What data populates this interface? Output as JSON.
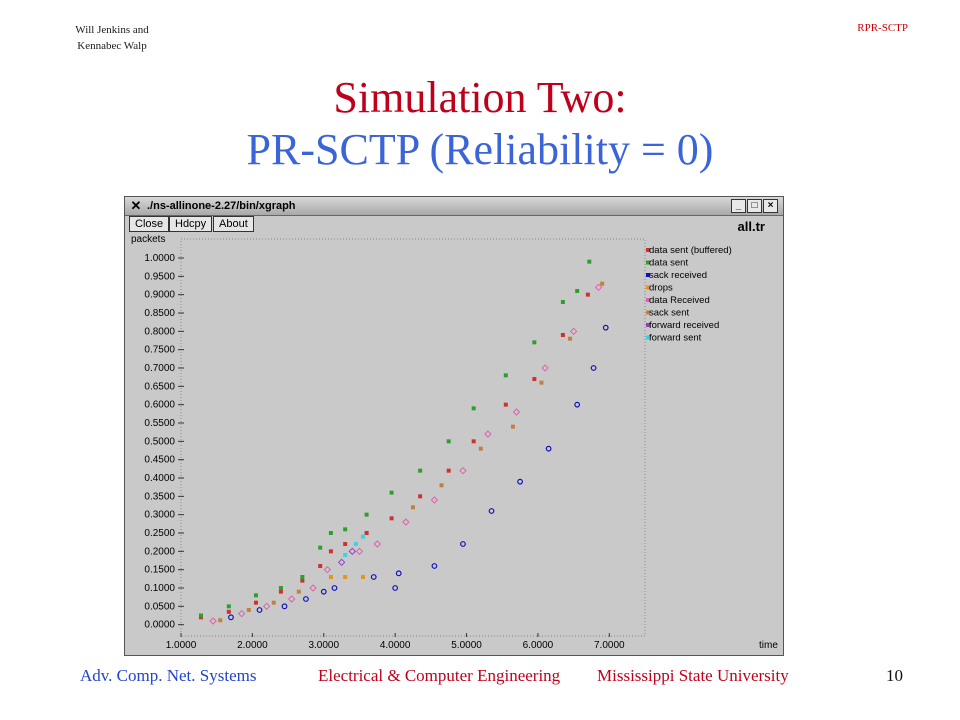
{
  "slide": {
    "authors_line1": "Will Jenkins and",
    "authors_line2": "Kennabec Walp",
    "topic": "RPR-SCTP",
    "title_line1": "Simulation Two:",
    "title_line2": "PR-SCTP (Reliability = 0)",
    "footer_course": "Adv. Comp. Net. Systems",
    "footer_dept": "Electrical & Computer Engineering",
    "footer_univ": "Mississippi State University",
    "page_number": "10"
  },
  "window": {
    "title": "./ns-allinone-2.27/bin/xgraph",
    "buttons": [
      "Close",
      "Hdcpy",
      "About"
    ],
    "controls": [
      "_",
      "□",
      "×"
    ]
  },
  "chart_data": {
    "type": "scatter",
    "title": "all.tr",
    "ylabel": "packets",
    "xlabel": "time",
    "xlim": [
      1.0,
      7.5
    ],
    "ylim": [
      -0.02,
      1.03
    ],
    "x_ticks": [
      "1.0000",
      "2.0000",
      "3.0000",
      "4.0000",
      "5.0000",
      "6.0000",
      "7.0000"
    ],
    "y_ticks": [
      "0.0000",
      "0.0500",
      "0.1000",
      "0.1500",
      "0.2000",
      "0.2500",
      "0.3000",
      "0.3500",
      "0.4000",
      "0.4500",
      "0.5000",
      "0.5500",
      "0.6000",
      "0.6500",
      "0.7000",
      "0.7500",
      "0.8000",
      "0.8500",
      "0.9000",
      "0.9500",
      "1.0000"
    ],
    "legend_position": "right",
    "series": [
      {
        "name": "data sent (buffered)",
        "color": "#d03030",
        "points": [
          [
            1.28,
            0.02
          ],
          [
            1.67,
            0.035
          ],
          [
            2.05,
            0.06
          ],
          [
            2.4,
            0.09
          ],
          [
            2.7,
            0.12
          ],
          [
            2.95,
            0.16
          ],
          [
            3.1,
            0.2
          ],
          [
            3.3,
            0.22
          ],
          [
            3.6,
            0.25
          ],
          [
            3.95,
            0.29
          ],
          [
            4.35,
            0.35
          ],
          [
            4.75,
            0.42
          ],
          [
            5.1,
            0.5
          ],
          [
            5.55,
            0.6
          ],
          [
            5.95,
            0.67
          ],
          [
            6.35,
            0.79
          ],
          [
            6.7,
            0.9
          ]
        ]
      },
      {
        "name": "data sent",
        "color": "#2ca02c",
        "points": [
          [
            1.28,
            0.025
          ],
          [
            1.67,
            0.05
          ],
          [
            2.05,
            0.08
          ],
          [
            2.4,
            0.1
          ],
          [
            2.7,
            0.13
          ],
          [
            2.95,
            0.21
          ],
          [
            3.1,
            0.25
          ],
          [
            3.3,
            0.26
          ],
          [
            3.6,
            0.3
          ],
          [
            3.95,
            0.36
          ],
          [
            4.35,
            0.42
          ],
          [
            4.75,
            0.5
          ],
          [
            5.1,
            0.59
          ],
          [
            5.55,
            0.68
          ],
          [
            5.95,
            0.77
          ],
          [
            6.35,
            0.88
          ],
          [
            6.55,
            0.91
          ],
          [
            6.72,
            0.99
          ]
        ]
      },
      {
        "name": "sack received",
        "color": "#1010c0",
        "points": [
          [
            1.7,
            0.02
          ],
          [
            2.1,
            0.04
          ],
          [
            2.45,
            0.05
          ],
          [
            2.75,
            0.07
          ],
          [
            3.0,
            0.09
          ],
          [
            3.15,
            0.1
          ],
          [
            3.7,
            0.13
          ],
          [
            4.0,
            0.1
          ],
          [
            4.05,
            0.14
          ],
          [
            4.55,
            0.16
          ],
          [
            4.95,
            0.22
          ],
          [
            5.35,
            0.31
          ],
          [
            5.75,
            0.39
          ],
          [
            6.15,
            0.48
          ],
          [
            6.55,
            0.6
          ],
          [
            6.78,
            0.7
          ],
          [
            6.95,
            0.81
          ]
        ]
      },
      {
        "name": "drops",
        "color": "#e89020",
        "points": [
          [
            3.1,
            0.13
          ],
          [
            3.3,
            0.13
          ],
          [
            3.55,
            0.13
          ]
        ]
      },
      {
        "name": "data Received",
        "color": "#e060b0",
        "points": [
          [
            1.45,
            0.01
          ],
          [
            1.85,
            0.03
          ],
          [
            2.2,
            0.05
          ],
          [
            2.55,
            0.07
          ],
          [
            2.85,
            0.1
          ],
          [
            3.05,
            0.15
          ],
          [
            3.5,
            0.2
          ],
          [
            3.75,
            0.22
          ],
          [
            4.15,
            0.28
          ],
          [
            4.55,
            0.34
          ],
          [
            4.95,
            0.42
          ],
          [
            5.3,
            0.52
          ],
          [
            5.7,
            0.58
          ],
          [
            6.1,
            0.7
          ],
          [
            6.5,
            0.8
          ],
          [
            6.85,
            0.92
          ]
        ]
      },
      {
        "name": "sack sent",
        "color": "#c08040",
        "points": [
          [
            1.55,
            0.012
          ],
          [
            1.95,
            0.04
          ],
          [
            2.3,
            0.06
          ],
          [
            2.65,
            0.09
          ],
          [
            4.25,
            0.32
          ],
          [
            4.65,
            0.38
          ],
          [
            5.2,
            0.48
          ],
          [
            5.65,
            0.54
          ],
          [
            6.05,
            0.66
          ],
          [
            6.45,
            0.78
          ],
          [
            6.9,
            0.93
          ]
        ]
      },
      {
        "name": "forward received",
        "color": "#9040c0",
        "points": [
          [
            3.25,
            0.17
          ],
          [
            3.4,
            0.2
          ]
        ]
      },
      {
        "name": "forward sent",
        "color": "#40d0e0",
        "points": [
          [
            3.3,
            0.19
          ],
          [
            3.45,
            0.22
          ],
          [
            3.55,
            0.24
          ]
        ]
      }
    ]
  }
}
